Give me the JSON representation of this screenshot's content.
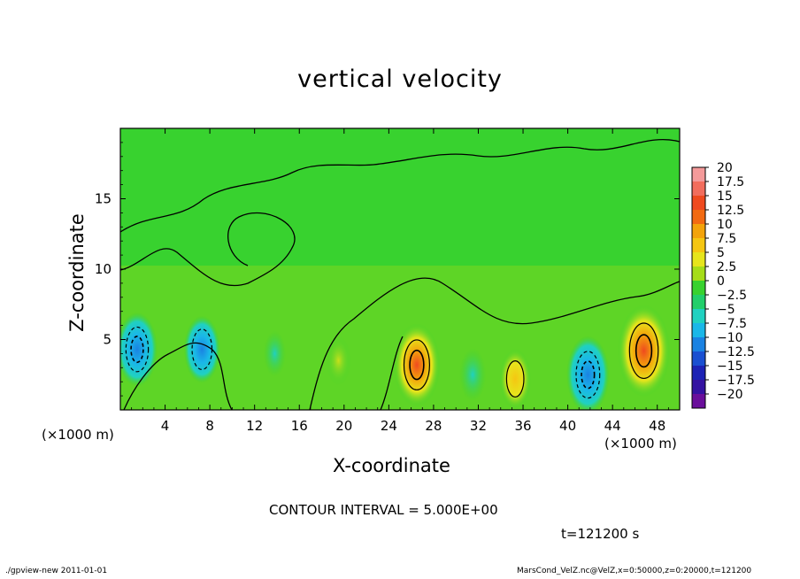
{
  "chart_data": {
    "type": "heatmap",
    "title": "vertical velocity",
    "xlabel": "X-coordinate",
    "ylabel": "Z-coordinate",
    "x_unit": "(×1000 m)",
    "x_ticks": [
      "4",
      "8",
      "12",
      "16",
      "20",
      "24",
      "28",
      "32",
      "36",
      "40",
      "44",
      "48"
    ],
    "y_ticks": [
      "5",
      "10",
      "15"
    ],
    "xlim": [
      0,
      50
    ],
    "ylim": [
      0,
      20
    ],
    "colorbar": {
      "labels": [
        "20",
        "17.5",
        "15",
        "12.5",
        "10",
        "7.5",
        "5",
        "2.5",
        "0",
        "−2.5",
        "−5",
        "−7.5",
        "−10",
        "−12.5",
        "−15",
        "−17.5",
        "−20"
      ],
      "colors": [
        "#f49a9a",
        "#f26d5d",
        "#ef4a1f",
        "#f26a12",
        "#f3a30b",
        "#f5c612",
        "#e6e51c",
        "#a6dd18",
        "#38d22f",
        "#22cf6b",
        "#20d1c0",
        "#1ab7e8",
        "#1a82e2",
        "#1a4fd1",
        "#1c22b5",
        "#3513a2",
        "#6a0f9b"
      ]
    },
    "contour_interval": "CONTOUR INTERVAL = 5.000E+00",
    "time_label": "t=121200 s",
    "features": [
      {
        "x": 26.5,
        "z": 3.2,
        "w": 12.5
      },
      {
        "x": 46.8,
        "z": 4.2,
        "w": 15
      },
      {
        "x": 35.3,
        "z": 2.2,
        "w": 6
      },
      {
        "x": 19.5,
        "z": 3.5,
        "w": 3
      },
      {
        "x": 1.5,
        "z": 4.3,
        "w": -10
      },
      {
        "x": 7.3,
        "z": 4.3,
        "w": -8
      },
      {
        "x": 41.8,
        "z": 2.5,
        "w": -11
      },
      {
        "x": 31.5,
        "z": 2.5,
        "w": -4
      },
      {
        "x": 13.8,
        "z": 4.0,
        "w": -2
      }
    ]
  },
  "footer": {
    "left": "./gpview-new  2011-01-01",
    "right": "MarsCond_VelZ.nc@VelZ,x=0:50000,z=0:20000,t=121200"
  }
}
